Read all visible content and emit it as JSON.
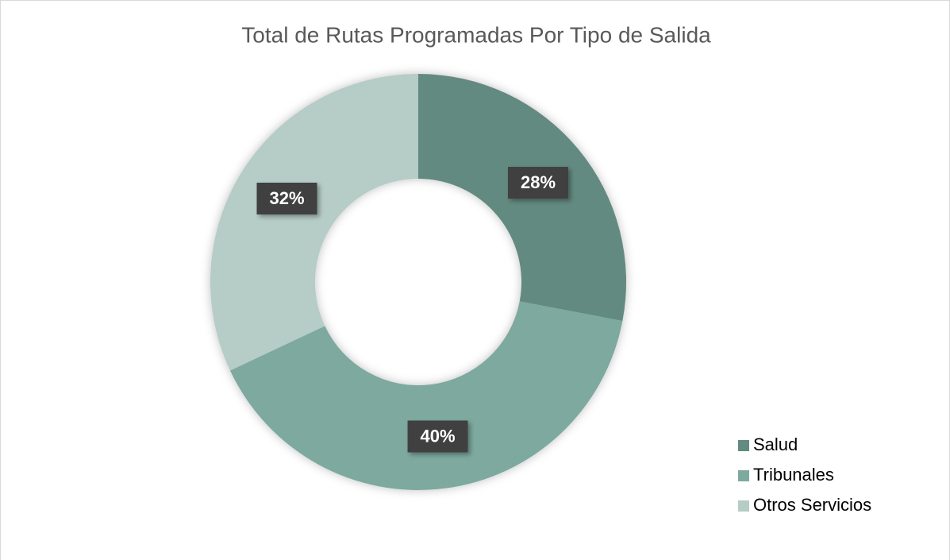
{
  "chart_data": {
    "type": "donut",
    "title": "Total de Rutas Programadas Por Tipo de Salida",
    "categories": [
      "Salud",
      "Tribunales",
      "Otros Servicios"
    ],
    "values": [
      28,
      40,
      32
    ],
    "value_labels": [
      "28%",
      "40%",
      "32%"
    ],
    "colors": [
      "#638a80",
      "#7da99f",
      "#b6ccc6"
    ],
    "legend": "bottom-right"
  }
}
